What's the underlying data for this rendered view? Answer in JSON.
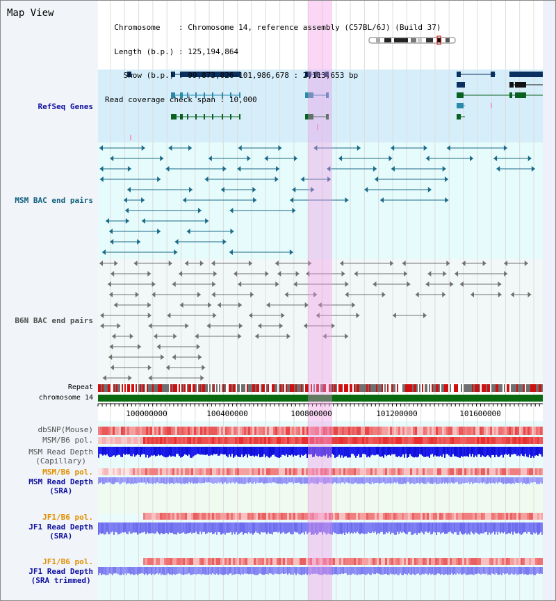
{
  "view": {
    "title": "Map View"
  },
  "info": {
    "chromosome_label": "Chromosome",
    "chromosome_value": "Chromosome 14, reference assembly (C57BL/6J) (Build 37)",
    "length_label": "Length (b.p.)",
    "length_value": "125,194,864",
    "show_label": "Show (b.p.)",
    "show_value": "99,873,026-101,986,678 : 2,113,653 bp",
    "span_label": "Read coverage check span",
    "span_value": "10,000"
  },
  "tracks": {
    "refseq": "RefSeq Genes",
    "msm_bac": "MSM BAC end pairs",
    "b6n_bac": "B6N BAC end pairs",
    "repeat": "Repeat",
    "chromosome": "chromosome 14",
    "dbsnp": "dbSNP(Mouse)",
    "msm_pol1": "MSM/B6 pol.",
    "msm_depth_cap_1": "MSM Read Depth",
    "msm_depth_cap_2": "(Capillary)",
    "msm_pol2": "MSM/B6 pol.",
    "msm_depth_sra_1": "MSM Read Depth",
    "msm_depth_sra_2": "(SRA)",
    "jf1_pol1": "JF1/B6 pol.",
    "jf1_depth_sra_1": "JF1 Read Depth",
    "jf1_depth_sra_2": "(SRA)",
    "jf1_pol2": "JF1/B6 pol.",
    "jf1_depth_trim_1": "JF1 Read Depth",
    "jf1_depth_trim_2": "(SRA trimmed)"
  },
  "axis": {
    "ticks": [
      "100000000",
      "100400000",
      "100800000",
      "101200000",
      "101600000"
    ]
  },
  "colors": {
    "refseq_label": "#1010a0",
    "msm_label": "#106080",
    "b6n_label": "#505050",
    "pol_label": "#e09000",
    "sra_label": "#1010a0",
    "highlight": "#f3c6ef"
  }
}
